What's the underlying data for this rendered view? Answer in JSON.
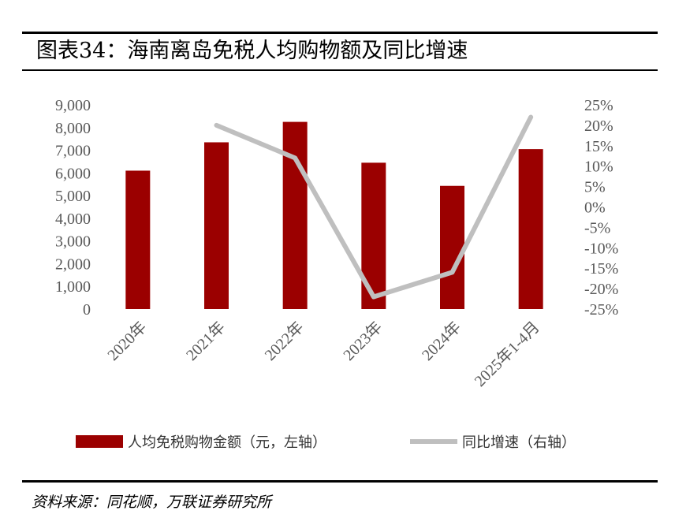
{
  "title": "图表34：海南离岛免税人均购物额及同比增速",
  "source": "资料来源：同花顺，万联证券研究所",
  "colors": {
    "bar": "#9b0000",
    "line": "#bfbfbf"
  },
  "chart_data": {
    "type": "bar",
    "categories": [
      "2020年",
      "2021年",
      "2022年",
      "2023年",
      "2024年",
      "2025年1-4月"
    ],
    "series": [
      {
        "name": "人均免税购物金额（元，左轴）",
        "type": "bar",
        "axis": "left",
        "values": [
          6100,
          7350,
          8250,
          6450,
          5430,
          7050
        ]
      },
      {
        "name": "同比增速（右轴）",
        "type": "line",
        "axis": "right",
        "values": [
          null,
          20,
          12,
          -22,
          -16,
          22
        ]
      }
    ],
    "y_left": {
      "min": 0,
      "max": 9000,
      "ticks": [
        0,
        1000,
        2000,
        3000,
        4000,
        5000,
        6000,
        7000,
        8000,
        9000
      ],
      "tick_labels": [
        "0",
        "1,000",
        "2,000",
        "3,000",
        "4,000",
        "5,000",
        "6,000",
        "7,000",
        "8,000",
        "9,000"
      ]
    },
    "y_right": {
      "min": -25,
      "max": 25,
      "ticks": [
        -25,
        -20,
        -15,
        -10,
        -5,
        0,
        5,
        10,
        15,
        20,
        25
      ],
      "tick_labels": [
        "-25%",
        "-20%",
        "-15%",
        "-10%",
        "-5%",
        "0%",
        "5%",
        "10%",
        "15%",
        "20%",
        "25%"
      ]
    },
    "grid": false,
    "legend_position": "bottom"
  }
}
